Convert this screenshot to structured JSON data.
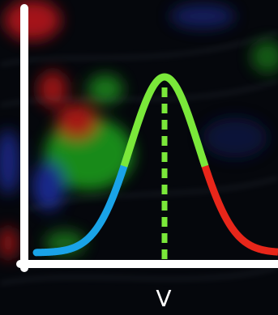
{
  "diagram": {
    "x_label": "V"
  }
}
